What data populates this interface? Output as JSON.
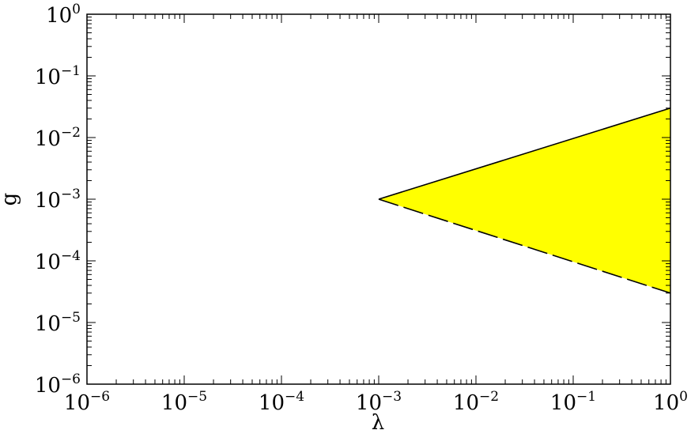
{
  "chart_data": {
    "type": "area",
    "xlabel": "λ",
    "ylabel": "g",
    "xscale": "log",
    "yscale": "log",
    "xlim": [
      1e-06,
      1
    ],
    "ylim": [
      1e-06,
      1
    ],
    "grid": false,
    "x_ticks": [
      {
        "value": 1e-06,
        "base": "10",
        "exp": "−6"
      },
      {
        "value": 1e-05,
        "base": "10",
        "exp": "−5"
      },
      {
        "value": 0.0001,
        "base": "10",
        "exp": "−4"
      },
      {
        "value": 0.001,
        "base": "10",
        "exp": "−3"
      },
      {
        "value": 0.01,
        "base": "10",
        "exp": "−2"
      },
      {
        "value": 0.1,
        "base": "10",
        "exp": "−1"
      },
      {
        "value": 1,
        "base": "10",
        "exp": "0"
      }
    ],
    "y_ticks": [
      {
        "value": 1e-06,
        "base": "10",
        "exp": "−6"
      },
      {
        "value": 1e-05,
        "base": "10",
        "exp": "−5"
      },
      {
        "value": 0.0001,
        "base": "10",
        "exp": "−4"
      },
      {
        "value": 0.001,
        "base": "10",
        "exp": "−3"
      },
      {
        "value": 0.01,
        "base": "10",
        "exp": "−2"
      },
      {
        "value": 0.1,
        "base": "10",
        "exp": "−1"
      },
      {
        "value": 1,
        "base": "10",
        "exp": "0"
      }
    ],
    "region": {
      "fill": "#ffff00",
      "vertices": [
        [
          0.001,
          0.001
        ],
        [
          1,
          0.03
        ],
        [
          1,
          3e-05
        ]
      ]
    },
    "series": [
      {
        "style": "solid",
        "color": "#000000",
        "points": [
          [
            0.001,
            0.001
          ],
          [
            1,
            0.03
          ]
        ]
      },
      {
        "style": "dashed",
        "color": "#000000",
        "points": [
          [
            0.001,
            0.001
          ],
          [
            1,
            3e-05
          ]
        ]
      }
    ]
  }
}
